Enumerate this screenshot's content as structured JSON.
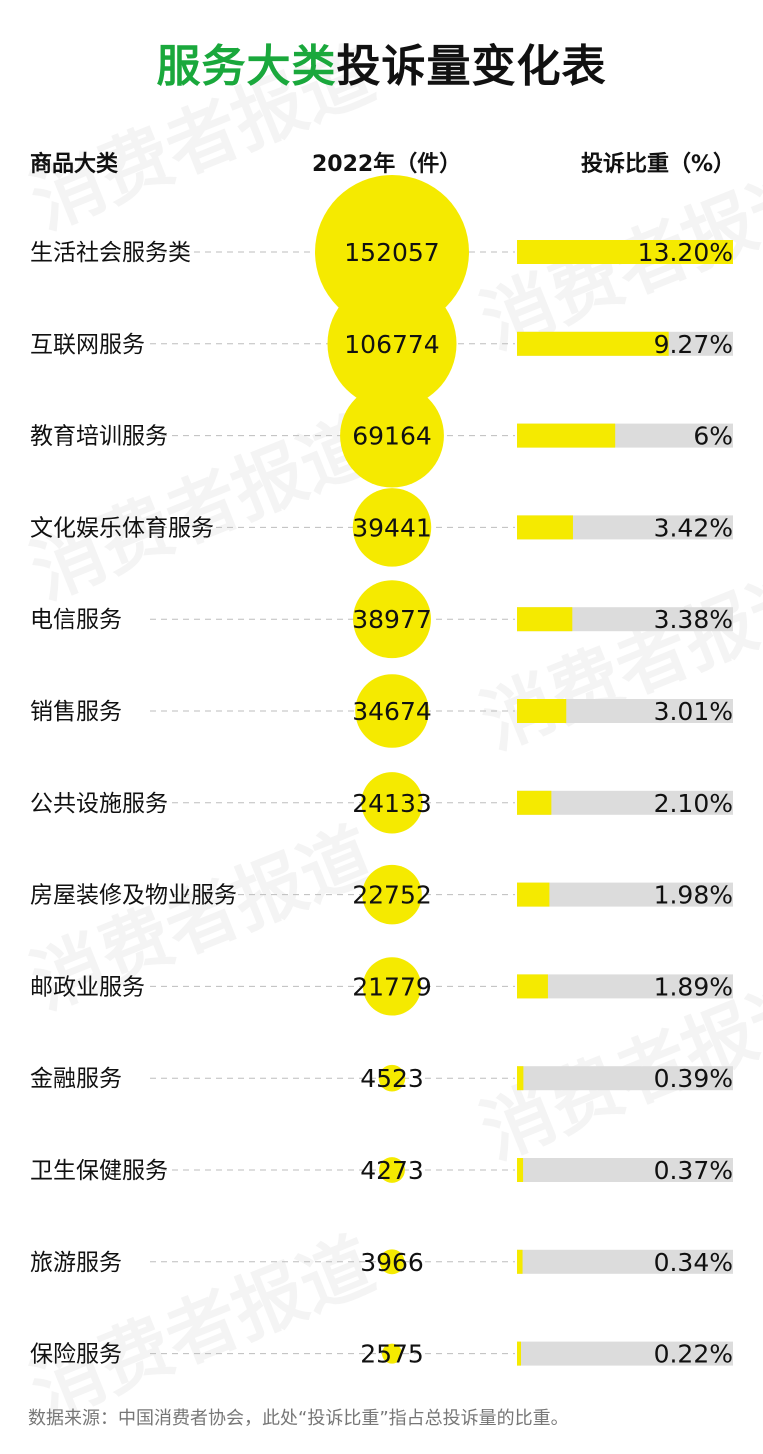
{
  "title_part1": "服务大类",
  "title_part2": "投诉量变化表",
  "header": {
    "category": "商品大类",
    "value": "2022年（件）",
    "share": "投诉比重（%）"
  },
  "watermark": "消费者报道",
  "source_note": "数据来源：中国消费者协会，此处“投诉比重”指占总投诉量的比重。",
  "colors": {
    "accent_yellow": "#f5ea00",
    "title_green": "#1aa83c",
    "bar_track": "#dcdcdc",
    "dash_line": "#bdbdbd"
  },
  "chart_data": {
    "type": "table",
    "categories": [
      "生活社会服务类",
      "互联网服务",
      "教育培训服务",
      "文化娱乐体育服务",
      "电信服务",
      "销售服务",
      "公共设施服务",
      "房屋装修及物业服务",
      "邮政业服务",
      "金融服务",
      "卫生保健服务",
      "旅游服务",
      "保险服务"
    ],
    "series": [
      {
        "name": "2022年（件）",
        "values": [
          152057,
          106774,
          69164,
          39441,
          38977,
          34674,
          24133,
          22752,
          21779,
          4523,
          4273,
          3966,
          2575
        ]
      },
      {
        "name": "投诉比重（%）",
        "values": [
          13.2,
          9.27,
          6,
          3.42,
          3.38,
          3.01,
          2.1,
          1.98,
          1.89,
          0.39,
          0.37,
          0.34,
          0.22
        ]
      }
    ],
    "share_labels": [
      "13.20%",
      "9.27%",
      "6%",
      "3.42%",
      "3.38%",
      "3.01%",
      "2.10%",
      "1.98%",
      "1.89%",
      "0.39%",
      "0.37%",
      "0.34%",
      "0.22%"
    ],
    "share_axis_max": 13.2
  }
}
